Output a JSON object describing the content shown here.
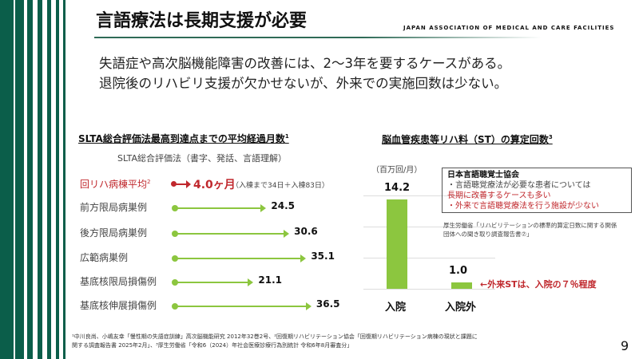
{
  "header": {
    "title": "言語療法は長期支援が必要",
    "organization": "JAPAN ASSOCIATION OF MEDICAL AND CARE FACILITIES"
  },
  "lead": [
    "失語症や高次脳機能障害の改善には、2〜3年を要するケースがある。",
    "退院後のリハビリ支援が欠かせないが、外来での実施回数は少ない。"
  ],
  "left_chart": {
    "title": "SLTA総合評価法最高到達点までの平均経過月数",
    "title_sup": "1",
    "subtitle": "SLTA総合評価法（書字、発話、言語理解）",
    "highlight": {
      "label": "回リハ病棟平均",
      "sup": "2",
      "value": "4.0ヶ月",
      "note": "（入棟まで34日＋入棟83日）"
    },
    "rows": [
      {
        "label": "前方限局病巣例",
        "value": 24.5,
        "value_text": "24.5"
      },
      {
        "label": "後方限局病巣例",
        "value": 30.6,
        "value_text": "30.6"
      },
      {
        "label": "広範病巣例",
        "value": 35.1,
        "value_text": "35.1"
      },
      {
        "label": "基底核限局損傷例",
        "value": 21.1,
        "value_text": "21.1"
      },
      {
        "label": "基底核伸展損傷例",
        "value": 36.5,
        "value_text": "36.5"
      }
    ]
  },
  "chart_data": {
    "type": "bar",
    "title": "脳血管疾患等リハ料（ST）の算定回数",
    "title_sup": "3",
    "ylabel": "（百万回/月）",
    "categories": [
      "入院",
      "入院外"
    ],
    "values": [
      14.2,
      1.0
    ],
    "value_labels": [
      "14.2",
      "1.0"
    ],
    "annotation": "←外来STは、入院の７％程度"
  },
  "callout": {
    "heading": "日本言語聴覚士協会",
    "line1": "・言語聴覚療法が必要な患者については",
    "line2": "長期に改善するケースも多い",
    "line3": "・外来で言語聴覚療法を行う施設が少ない",
    "source": "厚生労働省「リハビリテーションの標準的算定日数に関する関係団体への聞き取り調査報告書⑦」"
  },
  "footnotes": {
    "line1": "¹中川良尚、小嶋友幸「慢性期の失語症訓練」高次脳機能研究 2012年32巻2号、²回復期リハビリテーション協会「回復期リハビリテーション病棟の現状と課題に",
    "line2": "関する調査報告書 2025年2月」、³厚生労働省「令和6（2024）年社会医療診療行為別統計 令和6年8月審査分」"
  },
  "page_number": "9",
  "colors": {
    "brand": "#0b5e4a",
    "bar": "#8cc63f",
    "accent": "#c0282d"
  }
}
